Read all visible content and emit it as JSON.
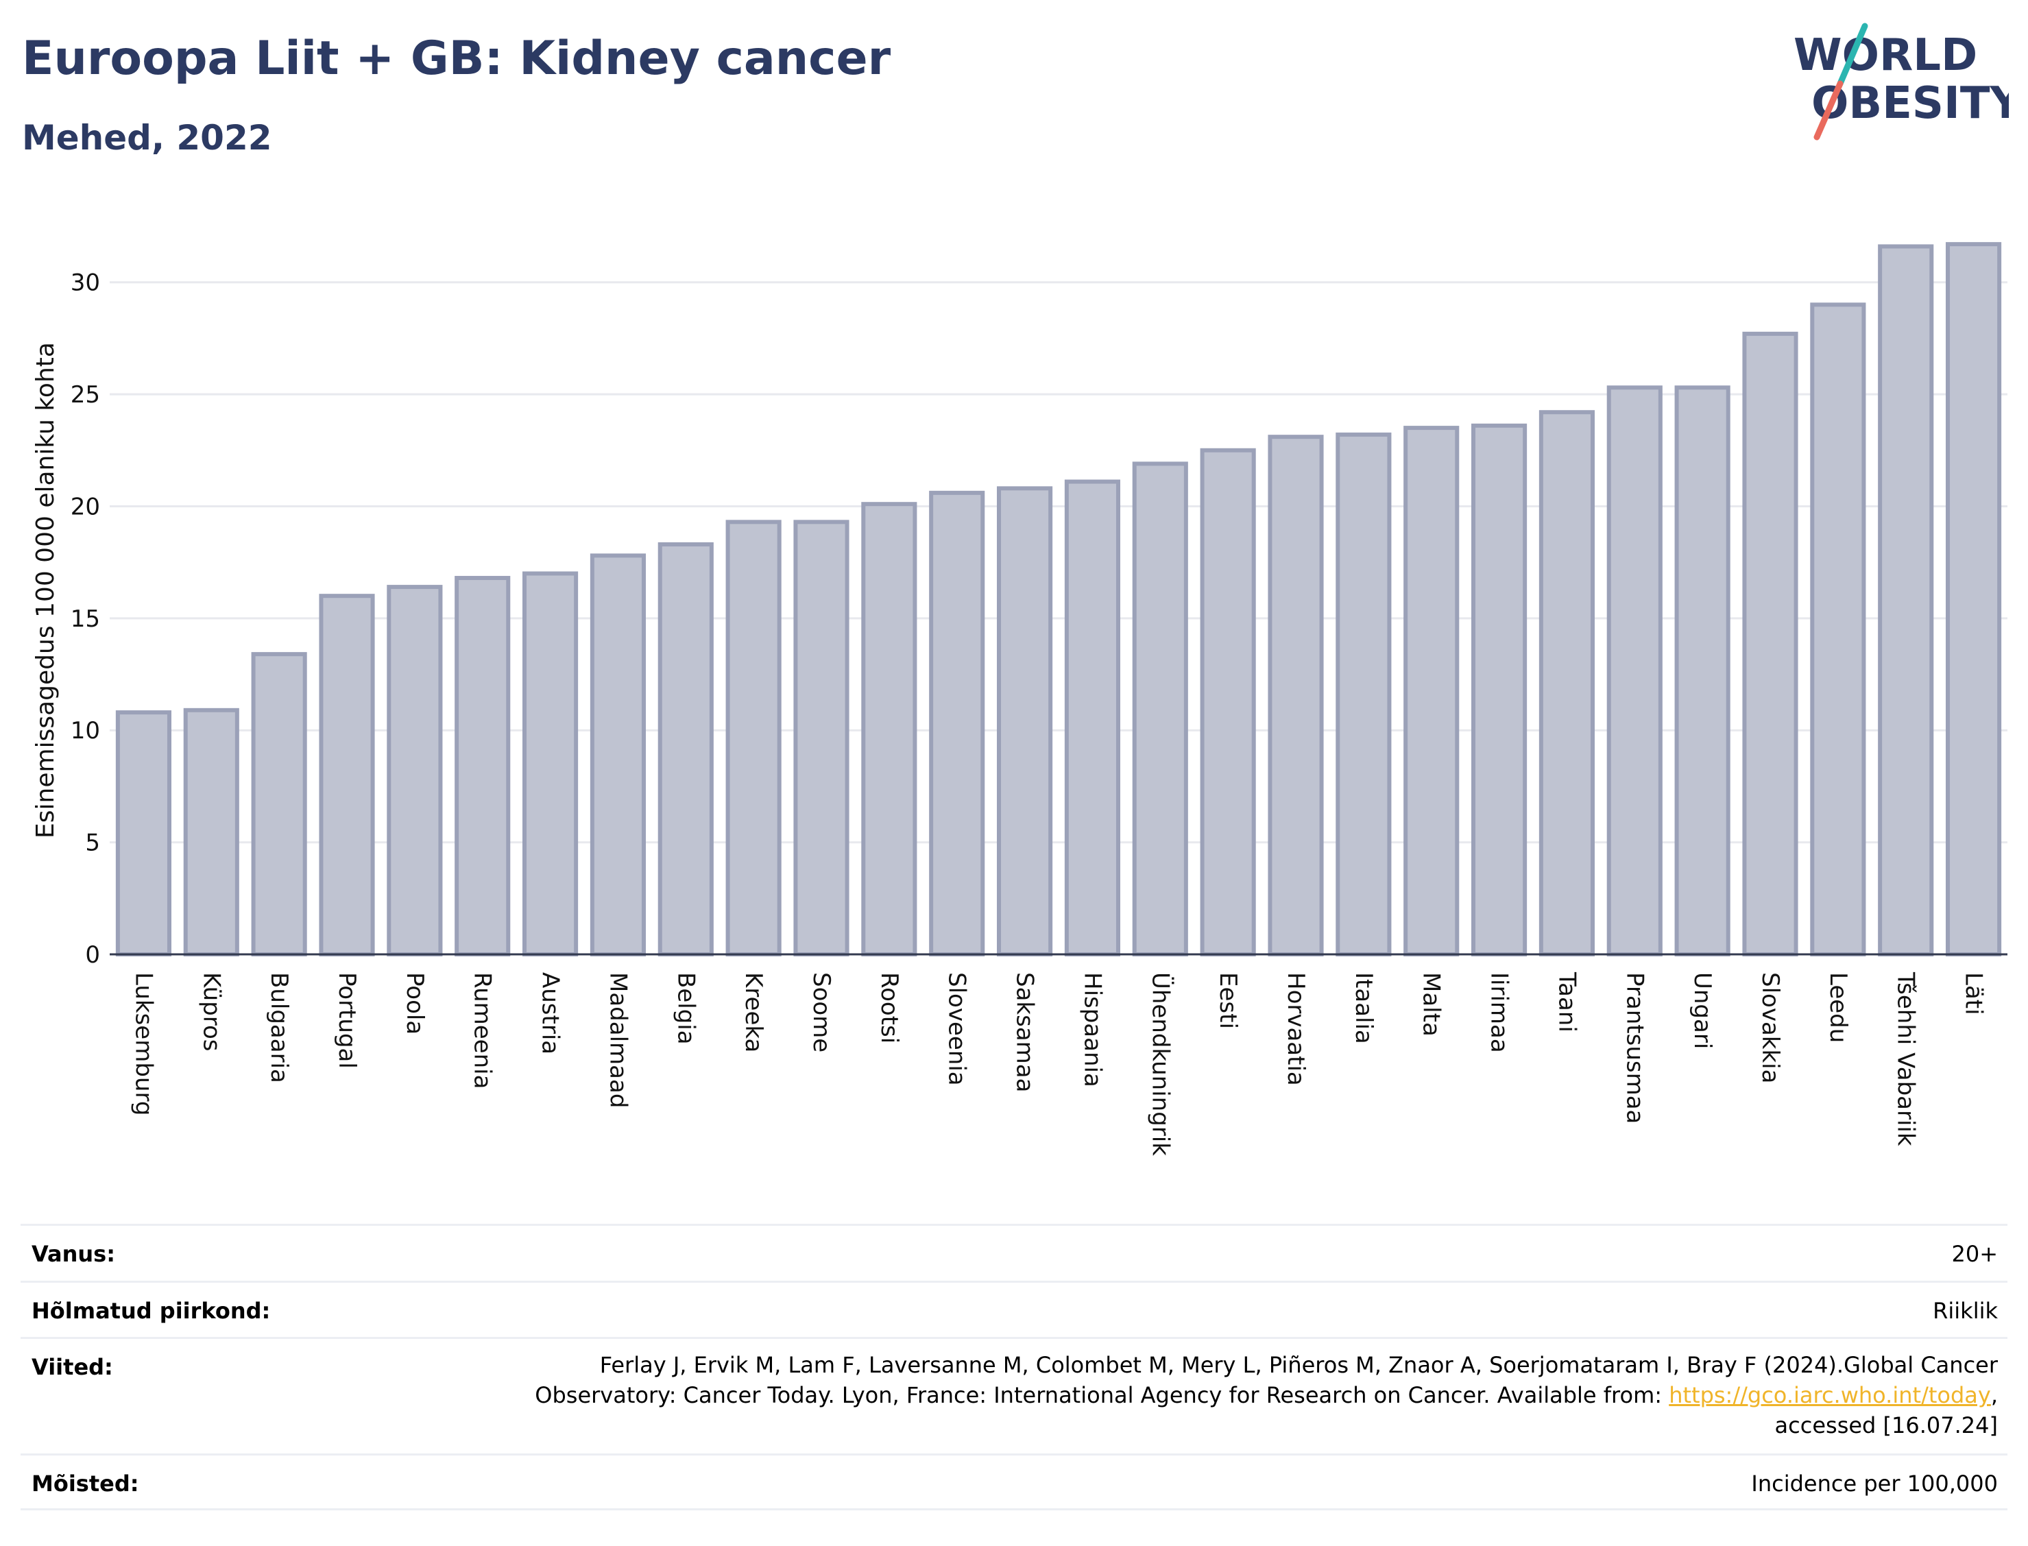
{
  "header": {
    "title": "Euroopa Liit + GB: Kidney cancer",
    "subtitle": "Mehed, 2022",
    "logo_text": [
      "WORLD",
      "OBESITY"
    ]
  },
  "colors": {
    "title": "#2c3a63",
    "bar_fill": "#bfc3d1",
    "bar_stroke": "#9ba1b8",
    "grid": "#e8e9ee",
    "link": "#f0b429",
    "logo_teal": "#2bb5b0",
    "logo_red": "#e96a5d"
  },
  "chart_data": {
    "type": "bar",
    "title": "Euroopa Liit + GB: Kidney cancer",
    "subtitle": "Mehed, 2022",
    "ylabel": "Esinemissagedus 100 000 elaniku kohta",
    "xlabel": "",
    "ylim": [
      0,
      32.5
    ],
    "yticks": [
      0,
      5,
      10,
      15,
      20,
      25,
      30
    ],
    "grid": true,
    "categories": [
      "Luksemburg",
      "Küpros",
      "Bulgaaria",
      "Portugal",
      "Poola",
      "Rumeenia",
      "Austria",
      "Madalmaad",
      "Belgia",
      "Kreeka",
      "Soome",
      "Rootsi",
      "Sloveenia",
      "Saksamaa",
      "Hispaania",
      "Ühendkuningrik",
      "Eesti",
      "Horvaatia",
      "Itaalia",
      "Malta",
      "Iirimaa",
      "Taani",
      "Prantsusmaa",
      "Ungari",
      "Slovakkia",
      "Leedu",
      "Tšehhi Vabariik",
      "Läti"
    ],
    "values": [
      10.8,
      10.9,
      13.4,
      16.0,
      16.4,
      16.8,
      17.0,
      17.8,
      18.3,
      19.3,
      19.3,
      20.1,
      20.6,
      20.8,
      21.1,
      21.9,
      22.5,
      23.1,
      23.2,
      23.5,
      23.6,
      24.2,
      25.3,
      25.3,
      27.7,
      29.0,
      31.6,
      31.7
    ]
  },
  "meta": {
    "age": {
      "label": "Vanus:",
      "value": "20+"
    },
    "region": {
      "label": "Hõlmatud piirkond:",
      "value": "Riiklik"
    },
    "refs": {
      "label": "Viited:",
      "line1": "Ferlay J, Ervik M, Lam F, Laversanne M, Colombet M, Mery L, Piñeros M, Znaor A, Soerjomataram I, Bray F (2024).Global Cancer",
      "line2_pre": "Observatory: Cancer Today. Lyon, France: International Agency for Research on Cancer. Available from: ",
      "link": "https://gco.iarc.who.int/today",
      "line2_post": ",",
      "line3": "accessed [16.07.24]"
    },
    "definitions": {
      "label": "Mõisted:",
      "value": "Incidence per 100,000"
    }
  }
}
